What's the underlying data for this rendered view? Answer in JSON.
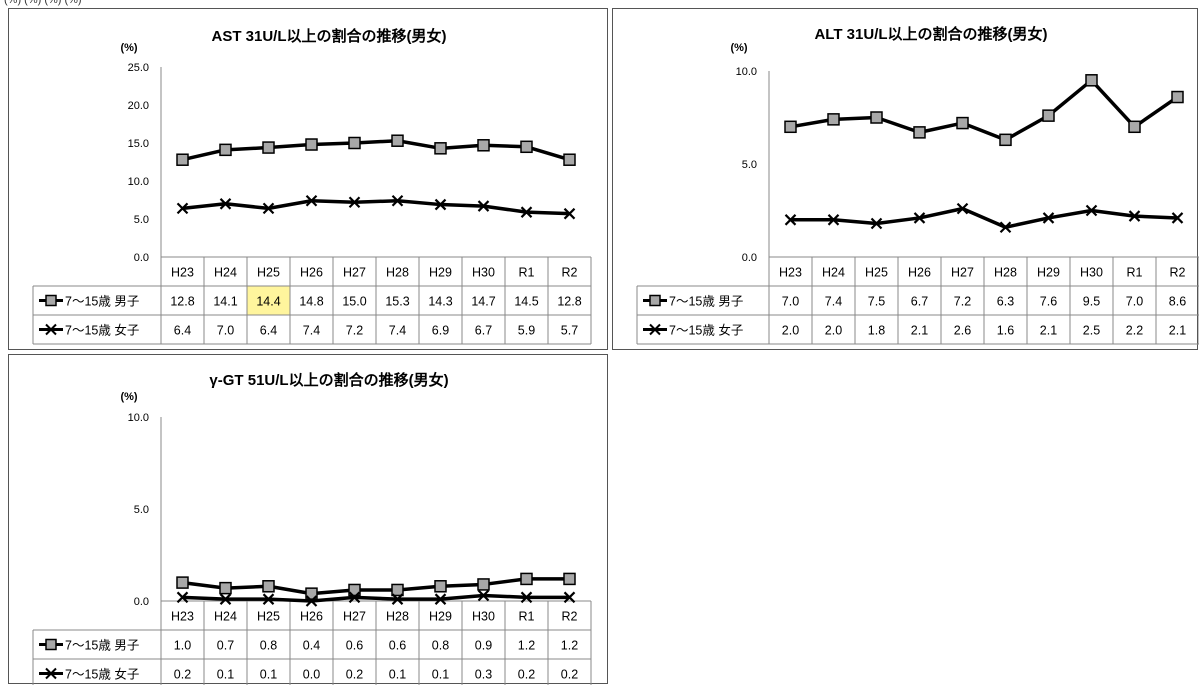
{
  "page": {
    "top_label": "(%) (%) (%) (%)"
  },
  "chart_data": [
    {
      "id": "ast",
      "type": "line",
      "title": "AST 31U/L以上の割合の推移(男女)",
      "ylabel": "(%)",
      "ylim": [
        0,
        25
      ],
      "yticks": [
        "0.0",
        "5.0",
        "10.0",
        "15.0",
        "20.0",
        "25.0"
      ],
      "categories": [
        "H23",
        "H24",
        "H25",
        "H26",
        "H27",
        "H28",
        "H29",
        "H30",
        "R1",
        "R2"
      ],
      "series": [
        {
          "name": "7〜15歳 男子",
          "marker": "square",
          "values": [
            12.8,
            14.1,
            14.4,
            14.8,
            15.0,
            15.3,
            14.3,
            14.7,
            14.5,
            12.8
          ],
          "labels": [
            "12.8",
            "14.1",
            "14.4",
            "14.8",
            "15.0",
            "15.3",
            "14.3",
            "14.7",
            "14.5",
            "12.8"
          ]
        },
        {
          "name": "7〜15歳 女子",
          "marker": "x",
          "values": [
            6.4,
            7.0,
            6.4,
            7.4,
            7.2,
            7.4,
            6.9,
            6.7,
            5.9,
            5.7
          ],
          "labels": [
            "6.4",
            "7.0",
            "6.4",
            "7.4",
            "7.2",
            "7.4",
            "6.9",
            "6.7",
            "5.9",
            "5.7"
          ]
        }
      ],
      "highlight": {
        "series": 0,
        "index": 2,
        "color": "#fff59d"
      }
    },
    {
      "id": "alt",
      "type": "line",
      "title": "ALT 31U/L以上の割合の推移(男女)",
      "ylabel": "(%)",
      "ylim": [
        0,
        10
      ],
      "yticks": [
        "0.0",
        "5.0",
        "10.0"
      ],
      "categories": [
        "H23",
        "H24",
        "H25",
        "H26",
        "H27",
        "H28",
        "H29",
        "H30",
        "R1",
        "R2"
      ],
      "series": [
        {
          "name": "7〜15歳 男子",
          "marker": "square",
          "values": [
            7.0,
            7.4,
            7.5,
            6.7,
            7.2,
            6.3,
            7.6,
            9.5,
            7.0,
            8.6
          ],
          "labels": [
            "7.0",
            "7.4",
            "7.5",
            "6.7",
            "7.2",
            "6.3",
            "7.6",
            "9.5",
            "7.0",
            "8.6"
          ]
        },
        {
          "name": "7〜15歳 女子",
          "marker": "x",
          "values": [
            2.0,
            2.0,
            1.8,
            2.1,
            2.6,
            1.6,
            2.1,
            2.5,
            2.2,
            2.1
          ],
          "labels": [
            "2.0",
            "2.0",
            "1.8",
            "2.1",
            "2.6",
            "1.6",
            "2.1",
            "2.5",
            "2.2",
            "2.1"
          ]
        }
      ]
    },
    {
      "id": "ggt",
      "type": "line",
      "title": "γ-GT 51U/L以上の割合の推移(男女)",
      "ylabel": "(%)",
      "ylim": [
        0,
        10
      ],
      "yticks": [
        "0.0",
        "5.0",
        "10.0"
      ],
      "categories": [
        "H23",
        "H24",
        "H25",
        "H26",
        "H27",
        "H28",
        "H29",
        "H30",
        "R1",
        "R2"
      ],
      "series": [
        {
          "name": "7〜15歳 男子",
          "marker": "square",
          "values": [
            1.0,
            0.7,
            0.8,
            0.4,
            0.6,
            0.6,
            0.8,
            0.9,
            1.2,
            1.2
          ],
          "labels": [
            "1.0",
            "0.7",
            "0.8",
            "0.4",
            "0.6",
            "0.6",
            "0.8",
            "0.9",
            "1.2",
            "1.2"
          ]
        },
        {
          "name": "7〜15歳 女子",
          "marker": "x",
          "values": [
            0.2,
            0.1,
            0.1,
            0.0,
            0.2,
            0.1,
            0.1,
            0.3,
            0.2,
            0.2
          ],
          "labels": [
            "0.2",
            "0.1",
            "0.1",
            "0.0",
            "0.2",
            "0.1",
            "0.1",
            "0.3",
            "0.2",
            "0.2"
          ]
        }
      ]
    }
  ]
}
